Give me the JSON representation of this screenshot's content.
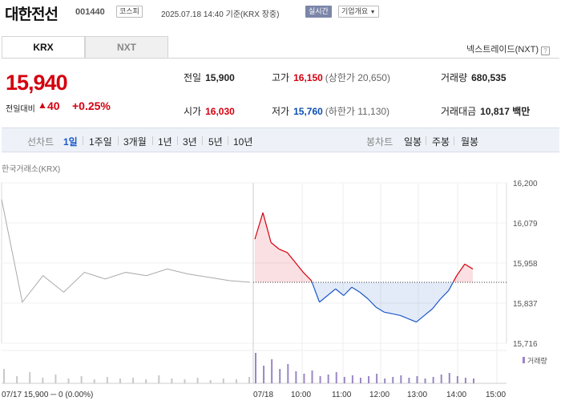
{
  "header": {
    "name": "대한전선",
    "code": "001440",
    "market": "코스피",
    "datetime": "2025.07.18 14:40 기준(KRX 장중)",
    "realtime": "실시간",
    "company_overview": "기업개요"
  },
  "tabs": [
    "KRX",
    "NXT"
  ],
  "nxt_link": "넥스트레이드(NXT)",
  "quote": {
    "price": "15,940",
    "change_label": "전일대비",
    "change_arrow": "▲",
    "change": "40",
    "change_pct": "+0.25%"
  },
  "stats": {
    "prev_close_label": "전일",
    "prev_close": "15,900",
    "high_label": "고가",
    "high": "16,150",
    "upper_limit": "(상한가 20,650)",
    "volume_label": "거래량",
    "volume": "680,535",
    "open_label": "시가",
    "open": "16,030",
    "low_label": "저가",
    "low": "15,760",
    "lower_limit": "(하한가 11,130)",
    "amount_label": "거래대금",
    "amount": "10,817 백만"
  },
  "period_bar": {
    "line_label": "선차트",
    "line_periods": [
      "1일",
      "1주일",
      "3개월",
      "1년",
      "3년",
      "5년",
      "10년"
    ],
    "selected": "1일",
    "candle_label": "봉차트",
    "candle_periods": [
      "일봉",
      "주봉",
      "월봉"
    ]
  },
  "chart_source": "한국거래소(KRX)",
  "colors": {
    "up": "#d4000f",
    "down": "#1b57c9",
    "prev_day": "#aaaaaa"
  },
  "chart_data": {
    "type": "line",
    "ylim": [
      15716,
      16200
    ],
    "y_ticks": [
      "16,200",
      "16,079",
      "15,958",
      "15,837",
      "15,716"
    ],
    "x_ticks": [
      "07/18",
      "10:00",
      "11:00",
      "12:00",
      "13:00",
      "14:00",
      "15:00"
    ],
    "prev_day_caption": "07/17 15,900 ─ 0 (0.00%)",
    "volume_legend": "거래량",
    "base_price": 15900,
    "series": [
      {
        "x": [
          "07/17 09:00",
          "07/17 09:30",
          "07/17 10:00",
          "07/17 10:30",
          "07/17 11:00",
          "07/17 11:30",
          "07/17 12:00",
          "07/17 12:30",
          "07/17 13:00",
          "07/17 13:30",
          "07/17 14:00",
          "07/17 14:30",
          "07/17 15:20"
        ],
        "values": [
          16150,
          15840,
          15920,
          15870,
          15930,
          15910,
          15930,
          15920,
          15940,
          15925,
          15915,
          15905,
          15900
        ]
      },
      {
        "x": [
          "09:00",
          "09:05",
          "09:10",
          "09:20",
          "09:30",
          "09:40",
          "09:50",
          "10:00",
          "10:15",
          "10:30",
          "10:45",
          "11:00",
          "11:15",
          "11:30",
          "11:45",
          "12:00",
          "12:15",
          "12:30",
          "12:45",
          "13:00",
          "13:15",
          "13:30",
          "13:45",
          "14:00",
          "14:10",
          "14:20",
          "14:30",
          "14:40"
        ],
        "values": [
          16030,
          16110,
          16020,
          16000,
          15990,
          15960,
          15930,
          15905,
          15840,
          15860,
          15880,
          15860,
          15885,
          15870,
          15850,
          15825,
          15810,
          15805,
          15800,
          15790,
          15780,
          15800,
          15820,
          15850,
          15875,
          15920,
          15955,
          15940
        ]
      }
    ],
    "volume": {
      "prev_day": [
        18,
        9,
        14,
        7,
        11,
        6,
        9,
        5,
        8,
        6,
        7,
        5,
        10,
        6,
        5,
        7,
        4,
        6,
        5,
        8
      ],
      "today": [
        38,
        22,
        30,
        18,
        24,
        15,
        12,
        16,
        9,
        11,
        14,
        8,
        10,
        7,
        9,
        12,
        6,
        8,
        10,
        7,
        9,
        6,
        8,
        11,
        13,
        9,
        7,
        6
      ]
    }
  }
}
